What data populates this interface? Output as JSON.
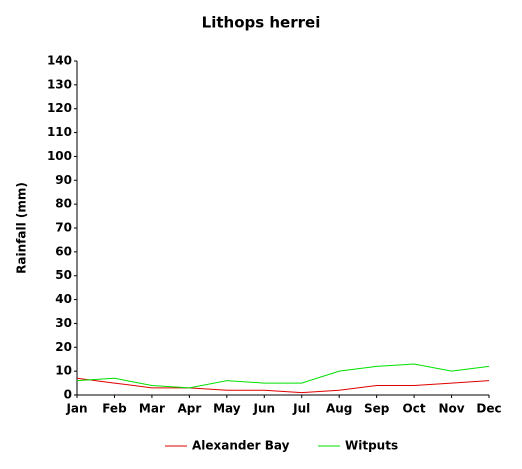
{
  "chart_data": {
    "type": "line",
    "title": "Lithops herrei",
    "y_label": "Rainfall (mm)",
    "categories": [
      "Jan",
      "Feb",
      "Mar",
      "Apr",
      "May",
      "Jun",
      "Jul",
      "Aug",
      "Sep",
      "Oct",
      "Nov",
      "Dec"
    ],
    "series": [
      {
        "name": "Alexander Bay",
        "color": "#e00000",
        "values": [
          7,
          5,
          3,
          3,
          2,
          2,
          1,
          2,
          4,
          4,
          5,
          6
        ]
      },
      {
        "name": "Witputs",
        "color": "#00e000",
        "values": [
          6,
          7,
          4,
          3,
          6,
          5,
          5,
          10,
          12,
          13,
          10,
          12
        ]
      }
    ],
    "ylim": [
      0,
      140
    ],
    "yticks": [
      0,
      10,
      20,
      30,
      40,
      50,
      60,
      70,
      80,
      90,
      100,
      110,
      120,
      130,
      140
    ],
    "grid": false,
    "legend": "bottom"
  }
}
